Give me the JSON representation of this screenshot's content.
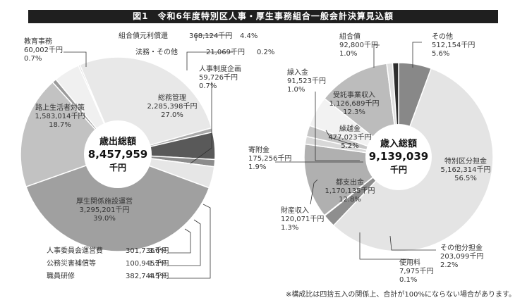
{
  "title": "図1　令和6年度特別区人事・厚生事務組合一般会計決算見込額",
  "footnote": "※構成比は四捨五入の関係上、合計が100%にならない場合があります。",
  "chart_data": [
    {
      "type": "pie",
      "name": "expenditure",
      "center_title": "歳出総額",
      "center_value": "8,457,959",
      "center_unit": "千円",
      "unit": "千円",
      "slices": [
        {
          "name": "総務管理",
          "value": 2285398,
          "value_label": "2,285,398千円",
          "percent": 27.0,
          "percent_label": "27.0%",
          "color": "#e8e8e8"
        },
        {
          "name": "人事制度企画",
          "value": 59726,
          "value_label": "59,726千円",
          "percent": 0.7,
          "percent_label": "0.7%",
          "color": "#aaaaaa"
        },
        {
          "name": "職員研修",
          "value": 382744,
          "value_label": "382,744千円",
          "percent": 4.5,
          "percent_label": "4.5%",
          "color": "#595959"
        },
        {
          "name": "公務災害補償等",
          "value": 100945,
          "value_label": "100,945千円",
          "percent": 1.2,
          "percent_label": "1.2%",
          "color": "#8c8c8c"
        },
        {
          "name": "人事委員会運営費",
          "value": 301736,
          "value_label": "301,736千円",
          "percent": 3.6,
          "percent_label": "3.6%",
          "color": "#e6e6e6"
        },
        {
          "name": "厚生関係施設運営",
          "value": 3295201,
          "value_label": "3,295,201千円",
          "percent": 39.0,
          "percent_label": "39.0%",
          "color": "#a0a0a0"
        },
        {
          "name": "路上生活者対策",
          "value": 1583014,
          "value_label": "1,583,014千円",
          "percent": 18.7,
          "percent_label": "18.7%",
          "color": "#c2c2c2"
        },
        {
          "name": "教育事務",
          "value": 60002,
          "value_label": "60,002千円",
          "percent": 0.7,
          "percent_label": "0.7%",
          "color": "#9a9a9a"
        },
        {
          "name": "組合債元利償還",
          "value": 368124,
          "value_label": "368,124千円",
          "percent": 4.4,
          "percent_label": "4.4%",
          "color": "#f0f0f0"
        },
        {
          "name": "法務・その他",
          "value": 21069,
          "value_label": "21,069千円",
          "percent": 0.2,
          "percent_label": "0.2%",
          "color": "#d0d0d0"
        }
      ]
    },
    {
      "type": "pie",
      "name": "revenue",
      "center_title": "歳入総額",
      "center_value": "9,139,039",
      "center_unit": "千円",
      "unit": "千円",
      "slices": [
        {
          "name": "その他",
          "value": 512154,
          "value_label": "512,154千円",
          "percent": 5.6,
          "percent_label": "5.6%",
          "color": "#888888"
        },
        {
          "name": "特別区分担金",
          "value": 5162314,
          "value_label": "5,162,314千円",
          "percent": 56.5,
          "percent_label": "56.5%",
          "color": "#e4e4e4"
        },
        {
          "name": "その他分担金",
          "value": 203099,
          "value_label": "203,099千円",
          "percent": 2.2,
          "percent_label": "2.2%",
          "color": "#8e8e8e"
        },
        {
          "name": "使用料",
          "value": 7975,
          "value_label": "7,975千円",
          "percent": 0.1,
          "percent_label": "0.1%",
          "color": "#555555"
        },
        {
          "name": "都支出金",
          "value": 1170135,
          "value_label": "1,170,135千円",
          "percent": 12.8,
          "percent_label": "12.8%",
          "color": "#b0b0b0"
        },
        {
          "name": "財産収入",
          "value": 120071,
          "value_label": "120,071千円",
          "percent": 1.3,
          "percent_label": "1.3%",
          "color": "#d8d8d8"
        },
        {
          "name": "寄附金",
          "value": 175256,
          "value_label": "175,256千円",
          "percent": 1.9,
          "percent_label": "1.9%",
          "color": "#c6c6c6"
        },
        {
          "name": "繰越金",
          "value": 477023,
          "value_label": "477,023千円",
          "percent": 5.2,
          "percent_label": "5.2%",
          "color": "#f2f2f2"
        },
        {
          "name": "受託事業収入",
          "value": 1126689,
          "value_label": "1,126,689千円",
          "percent": 12.3,
          "percent_label": "12.3%",
          "color": "#bcbcbc"
        },
        {
          "name": "繰入金",
          "value": 91523,
          "value_label": "91,523千円",
          "percent": 1.0,
          "percent_label": "1.0%",
          "color": "#e0e0e0"
        },
        {
          "name": "組合債",
          "value": 92800,
          "value_label": "92,800千円",
          "percent": 1.0,
          "percent_label": "1.0%",
          "color": "#2e2e2e"
        }
      ]
    }
  ]
}
